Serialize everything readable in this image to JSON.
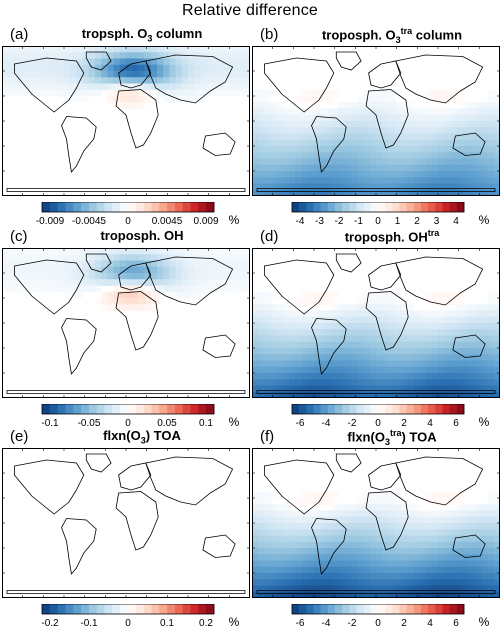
{
  "figure_title": "Relative difference",
  "unit": "%",
  "panels": [
    {
      "label": "(a)",
      "title": {
        "pre": "tropsph. O",
        "sub": "3",
        "sup": "",
        "post": " column"
      },
      "pattern": "europe",
      "amp": 0.8,
      "colorbar": {
        "ticks": [
          "-0.009",
          "-0.0045",
          "0",
          "0.0045",
          "0.009"
        ],
        "bins": 22
      }
    },
    {
      "label": "(b)",
      "title": {
        "pre": "troposph. O",
        "sub": "3",
        "sup": "tra",
        "post": " column"
      },
      "pattern": "south",
      "amp": 0.7,
      "colorbar": {
        "ticks": [
          "-4",
          "-3",
          "-2",
          "-1",
          "0",
          "1",
          "2",
          "3",
          "4"
        ],
        "bins": 24
      }
    },
    {
      "label": "(c)",
      "title": {
        "pre": "troposph. OH",
        "sub": "",
        "sup": "",
        "post": ""
      },
      "pattern": "europe",
      "amp": 0.6,
      "colorbar": {
        "ticks": [
          "-0.1",
          "-0.05",
          "0",
          "0.05",
          "0.1"
        ],
        "bins": 22
      }
    },
    {
      "label": "(d)",
      "title": {
        "pre": "troposph. OH",
        "sub": "",
        "sup": "tra",
        "post": ""
      },
      "pattern": "south",
      "amp": 0.85,
      "colorbar": {
        "ticks": [
          "-6",
          "-4",
          "-2",
          "0",
          "2",
          "4",
          "6"
        ],
        "bins": 24
      }
    },
    {
      "label": "(e)",
      "title": {
        "pre": "flxn(O",
        "sub": "3",
        "sup": "",
        "post": ") TOA"
      },
      "pattern": "none",
      "amp": 0,
      "colorbar": {
        "ticks": [
          "-0.2",
          "-0.1",
          "0",
          "0.1",
          "0.2"
        ],
        "bins": 22
      }
    },
    {
      "label": "(f)",
      "title": {
        "pre": "flxn(O",
        "sub": "3",
        "sup": "tra",
        "post": ") TOA"
      },
      "pattern": "south",
      "amp": 0.9,
      "colorbar": {
        "ticks": [
          "-6",
          "-4",
          "-2",
          "0",
          "2",
          "4",
          "6"
        ],
        "bins": 24
      }
    }
  ]
}
